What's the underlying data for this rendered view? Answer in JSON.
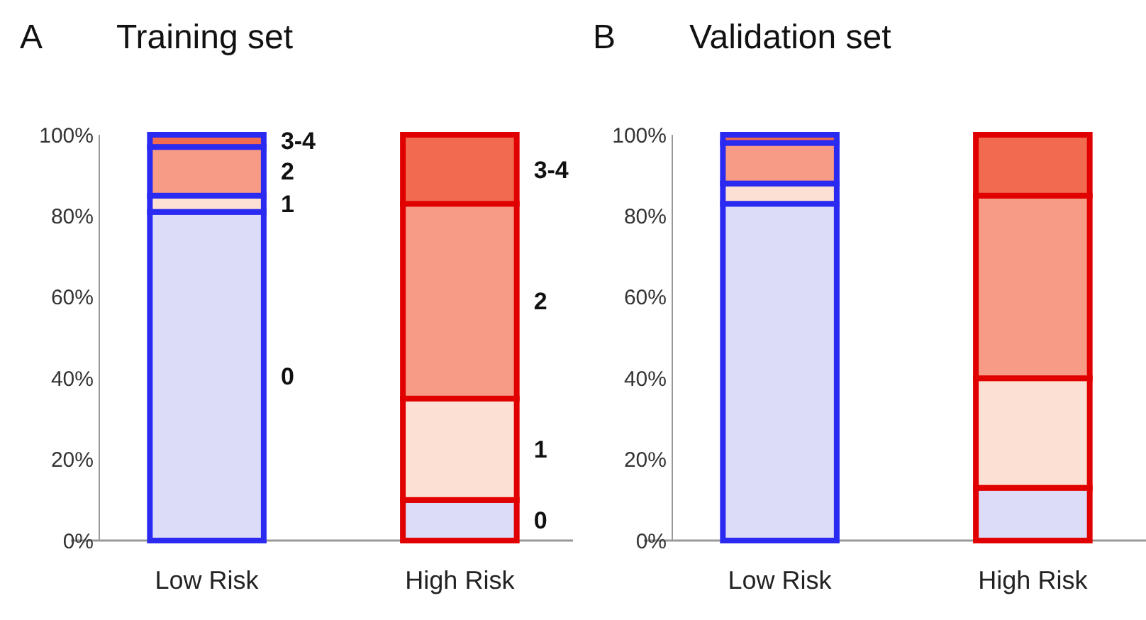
{
  "chart_data": [
    {
      "type": "bar",
      "title": "Training set",
      "annotations": [
        "A"
      ],
      "categories": [
        "Low Risk",
        "High Risk"
      ],
      "stacked": true,
      "ylim": [
        0,
        100
      ],
      "yticks": [
        {
          "value": 0,
          "label": "0%"
        },
        {
          "value": 20,
          "label": "20%"
        },
        {
          "value": 40,
          "label": "40%"
        },
        {
          "value": 60,
          "label": "60%"
        },
        {
          "value": 80,
          "label": "80%"
        },
        {
          "value": 100,
          "label": "100%"
        }
      ],
      "grid": false,
      "series": [
        {
          "name": "0",
          "color": "#dcdcf8",
          "values": [
            81,
            10
          ]
        },
        {
          "name": "1",
          "color": "#fde0d4",
          "values": [
            4,
            25
          ]
        },
        {
          "name": "2",
          "color": "#f79a86",
          "values": [
            12,
            48
          ]
        },
        {
          "name": "3-4",
          "color": "#f26a50",
          "values": [
            3,
            17
          ]
        }
      ]
    },
    {
      "type": "bar",
      "title": "Validation set",
      "annotations": [
        "B"
      ],
      "categories": [
        "Low Risk",
        "High Risk"
      ],
      "stacked": true,
      "ylim": [
        0,
        100
      ],
      "yticks": [
        {
          "value": 0,
          "label": "0%"
        },
        {
          "value": 20,
          "label": "20%"
        },
        {
          "value": 40,
          "label": "40%"
        },
        {
          "value": 60,
          "label": "60%"
        },
        {
          "value": 80,
          "label": "80%"
        },
        {
          "value": 100,
          "label": "100%"
        }
      ],
      "grid": false,
      "series": [
        {
          "color": "#dcdcf8",
          "values": [
            83,
            13
          ]
        },
        {
          "color": "#fde0d4",
          "values": [
            5,
            27
          ]
        },
        {
          "color": "#f79a86",
          "values": [
            10,
            45
          ]
        },
        {
          "color": "#f26a50",
          "values": [
            2,
            15
          ]
        }
      ]
    }
  ]
}
